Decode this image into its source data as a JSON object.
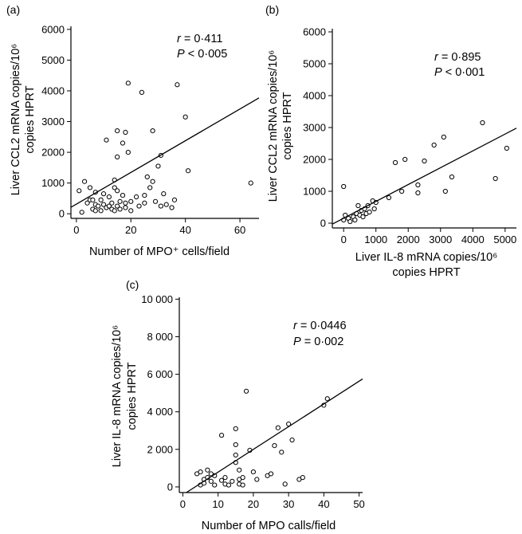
{
  "chart_data": [
    {
      "panel": "(a)",
      "type": "scatter",
      "xlabel": "Number of MPO⁺ cells/field",
      "ylabel_lines": [
        "Liver CCL2 mRNA copies/10⁶",
        "copies HPRT"
      ],
      "xticks": [
        0,
        20,
        40,
        60
      ],
      "yticks": [
        0,
        1000,
        2000,
        3000,
        4000,
        5000,
        6000
      ],
      "xlim": [
        -2,
        67
      ],
      "ylim": [
        -150,
        6100
      ],
      "stat_r": "r = 0·411",
      "stat_p": "P < 0·005",
      "fit": {
        "x0": -2,
        "y0": 210,
        "x1": 67,
        "y1": 3770
      },
      "points": [
        [
          1,
          750
        ],
        [
          2,
          50
        ],
        [
          3,
          1050
        ],
        [
          4,
          350
        ],
        [
          5,
          450
        ],
        [
          5,
          850
        ],
        [
          6,
          150
        ],
        [
          6,
          450
        ],
        [
          7,
          300
        ],
        [
          7,
          700
        ],
        [
          7,
          100
        ],
        [
          8,
          250
        ],
        [
          9,
          450
        ],
        [
          9,
          100
        ],
        [
          10,
          650
        ],
        [
          10,
          300
        ],
        [
          11,
          2400
        ],
        [
          11,
          200
        ],
        [
          12,
          250
        ],
        [
          12,
          550
        ],
        [
          13,
          350
        ],
        [
          13,
          150
        ],
        [
          14,
          850
        ],
        [
          14,
          1100
        ],
        [
          14,
          100
        ],
        [
          15,
          2700
        ],
        [
          15,
          1850
        ],
        [
          15,
          750
        ],
        [
          15,
          250
        ],
        [
          16,
          400
        ],
        [
          16,
          150
        ],
        [
          17,
          2300
        ],
        [
          17,
          600
        ],
        [
          18,
          2650
        ],
        [
          18,
          350
        ],
        [
          18,
          200
        ],
        [
          19,
          4250
        ],
        [
          19,
          2000
        ],
        [
          20,
          400
        ],
        [
          20,
          100
        ],
        [
          22,
          550
        ],
        [
          23,
          250
        ],
        [
          24,
          3950
        ],
        [
          25,
          350
        ],
        [
          25,
          600
        ],
        [
          26,
          1200
        ],
        [
          27,
          850
        ],
        [
          28,
          2700
        ],
        [
          28,
          1050
        ],
        [
          29,
          400
        ],
        [
          30,
          1550
        ],
        [
          31,
          1900
        ],
        [
          31,
          250
        ],
        [
          32,
          650
        ],
        [
          33,
          300
        ],
        [
          35,
          200
        ],
        [
          36,
          450
        ],
        [
          37,
          4200
        ],
        [
          40,
          3150
        ],
        [
          41,
          1400
        ],
        [
          64,
          1000
        ]
      ]
    },
    {
      "panel": "(b)",
      "type": "scatter",
      "xlabel_lines": [
        "Liver IL-8 mRNA copies/10⁶",
        "copies HPRT"
      ],
      "ylabel_lines": [
        "Liver CCL2 mRNA copies/10⁶",
        "copies HPRT"
      ],
      "xticks": [
        0,
        1000,
        2000,
        3000,
        4000,
        5000
      ],
      "yticks": [
        0,
        1000,
        2000,
        3000,
        4000,
        5000,
        6000
      ],
      "xlim": [
        -350,
        5350
      ],
      "ylim": [
        -150,
        6100
      ],
      "stat_r": "r = 0·895",
      "stat_p": "P < 0·001",
      "fit": {
        "x0": -350,
        "y0": -30,
        "x1": 5350,
        "y1": 2980
      },
      "points": [
        [
          0,
          1150
        ],
        [
          0,
          100
        ],
        [
          50,
          250
        ],
        [
          150,
          150
        ],
        [
          200,
          50
        ],
        [
          300,
          200
        ],
        [
          350,
          100
        ],
        [
          400,
          300
        ],
        [
          450,
          550
        ],
        [
          500,
          250
        ],
        [
          550,
          400
        ],
        [
          600,
          200
        ],
        [
          650,
          450
        ],
        [
          700,
          300
        ],
        [
          750,
          550
        ],
        [
          800,
          350
        ],
        [
          900,
          700
        ],
        [
          950,
          450
        ],
        [
          1000,
          650
        ],
        [
          1400,
          800
        ],
        [
          1600,
          1900
        ],
        [
          1800,
          1000
        ],
        [
          1900,
          2000
        ],
        [
          2300,
          950
        ],
        [
          2300,
          1200
        ],
        [
          2500,
          1950
        ],
        [
          2800,
          2450
        ],
        [
          3100,
          2700
        ],
        [
          3150,
          1000
        ],
        [
          3350,
          1450
        ],
        [
          4300,
          3150
        ],
        [
          4700,
          1400
        ],
        [
          5050,
          2350
        ]
      ]
    },
    {
      "panel": "(c)",
      "type": "scatter",
      "xlabel": "Number of MPO calls/field",
      "ylabel_lines": [
        "Liver IL-8 mRNA copies/10⁶",
        "copies HPRT"
      ],
      "xticks": [
        0,
        10,
        20,
        30,
        40,
        50
      ],
      "ytick_labels": [
        "0",
        "2 000",
        "4 000",
        "6 000",
        "8 000",
        "10 000"
      ],
      "yticks": [
        0,
        2000,
        4000,
        6000,
        8000,
        10000
      ],
      "xlim": [
        -1,
        51
      ],
      "ylim": [
        -300,
        10100
      ],
      "stat_r": "r = 0·0446",
      "stat_p": "P = 0·002",
      "fit": {
        "x0": 1,
        "y0": -300,
        "x1": 51,
        "y1": 5750
      },
      "points": [
        [
          4,
          700
        ],
        [
          5,
          100
        ],
        [
          5,
          800
        ],
        [
          6,
          400
        ],
        [
          6,
          200
        ],
        [
          7,
          900
        ],
        [
          7,
          500
        ],
        [
          8,
          700
        ],
        [
          8,
          300
        ],
        [
          9,
          600
        ],
        [
          9,
          100
        ],
        [
          11,
          2750
        ],
        [
          11,
          350
        ],
        [
          12,
          150
        ],
        [
          12,
          500
        ],
        [
          13,
          100
        ],
        [
          14,
          300
        ],
        [
          15,
          3100
        ],
        [
          15,
          2250
        ],
        [
          15,
          1700
        ],
        [
          15,
          1300
        ],
        [
          16,
          900
        ],
        [
          16,
          400
        ],
        [
          16,
          150
        ],
        [
          17,
          100
        ],
        [
          17,
          500
        ],
        [
          18,
          5100
        ],
        [
          19,
          1950
        ],
        [
          20,
          800
        ],
        [
          21,
          400
        ],
        [
          24,
          600
        ],
        [
          25,
          700
        ],
        [
          26,
          2200
        ],
        [
          27,
          3150
        ],
        [
          28,
          1850
        ],
        [
          29,
          150
        ],
        [
          30,
          3350
        ],
        [
          31,
          2500
        ],
        [
          33,
          400
        ],
        [
          34,
          500
        ],
        [
          40,
          4350
        ],
        [
          41,
          4700
        ]
      ]
    }
  ]
}
